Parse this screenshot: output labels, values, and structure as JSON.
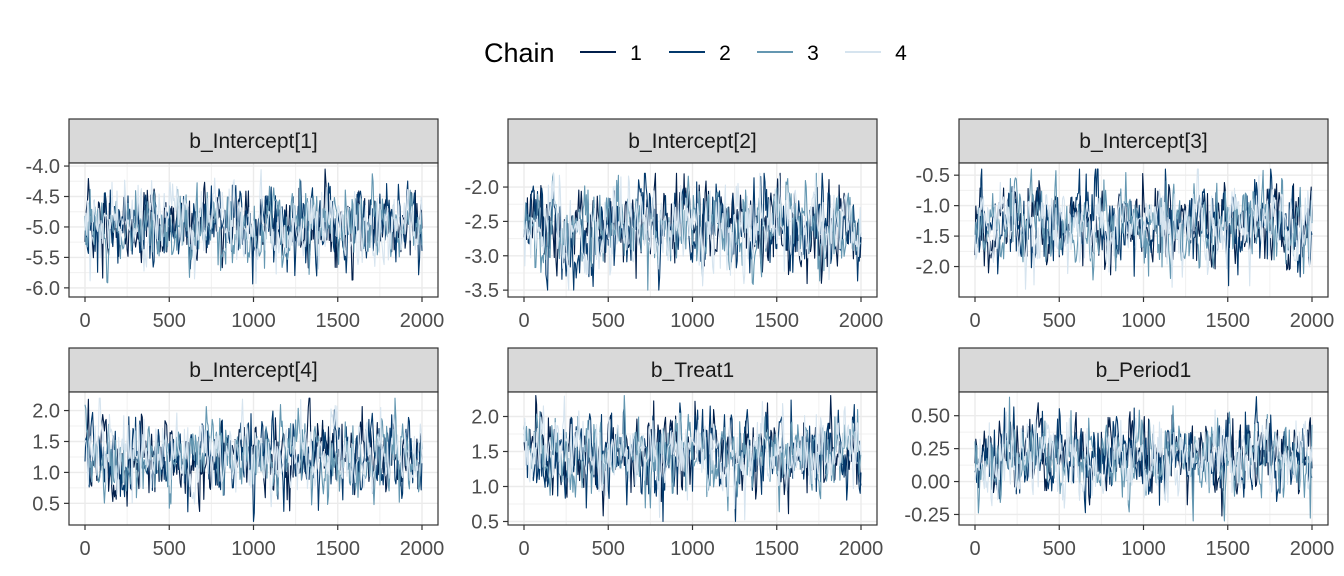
{
  "legend": {
    "title": "Chain",
    "entries": [
      {
        "label": "1",
        "color": "#011f4b"
      },
      {
        "label": "2",
        "color": "#03396c"
      },
      {
        "label": "3",
        "color": "#6497b1"
      },
      {
        "label": "4",
        "color": "#d6e4ef"
      }
    ]
  },
  "chart_data": [
    {
      "type": "line",
      "title": "b_Intercept[1]",
      "xlim": [
        0,
        2000
      ],
      "ylim": [
        -6.15,
        -3.95
      ],
      "xticks": [
        0,
        500,
        1000,
        1500,
        2000
      ],
      "yticks": [
        -6.0,
        -5.5,
        -5.0,
        -4.5,
        -4.0
      ],
      "ytick_labels": [
        "-6.0",
        "-5.5",
        "-5.0",
        "-4.5",
        "-4.0"
      ],
      "series_summary": {
        "center": -5.0,
        "spread": 0.32,
        "min": -6.0,
        "max": -4.05
      }
    },
    {
      "type": "line",
      "title": "b_Intercept[2]",
      "xlim": [
        0,
        2000
      ],
      "ylim": [
        -3.6,
        -1.65
      ],
      "xticks": [
        0,
        500,
        1000,
        1500,
        2000
      ],
      "yticks": [
        -3.5,
        -3.0,
        -2.5,
        -2.0
      ],
      "ytick_labels": [
        "-3.5",
        "-3.0",
        "-2.5",
        "-2.0"
      ],
      "series_summary": {
        "center": -2.6,
        "spread": 0.32,
        "min": -3.5,
        "max": -1.8
      }
    },
    {
      "type": "line",
      "title": "b_Intercept[3]",
      "xlim": [
        0,
        2000
      ],
      "ylim": [
        -2.5,
        -0.3
      ],
      "xticks": [
        0,
        500,
        1000,
        1500,
        2000
      ],
      "yticks": [
        -2.0,
        -1.5,
        -1.0,
        -0.5
      ],
      "ytick_labels": [
        "-2.0",
        "-1.5",
        "-1.0",
        "-0.5"
      ],
      "series_summary": {
        "center": -1.3,
        "spread": 0.33,
        "min": -2.4,
        "max": -0.4
      }
    },
    {
      "type": "line",
      "title": "b_Intercept[4]",
      "xlim": [
        0,
        2000
      ],
      "ylim": [
        0.15,
        2.3
      ],
      "xticks": [
        0,
        500,
        1000,
        1500,
        2000
      ],
      "yticks": [
        0.5,
        1.0,
        1.5,
        2.0
      ],
      "ytick_labels": [
        "0.5",
        "1.0",
        "1.5",
        "2.0"
      ],
      "series_summary": {
        "center": 1.25,
        "spread": 0.32,
        "min": 0.2,
        "max": 2.2
      }
    },
    {
      "type": "line",
      "title": "b_Treat1",
      "xlim": [
        0,
        2000
      ],
      "ylim": [
        0.45,
        2.35
      ],
      "xticks": [
        0,
        500,
        1000,
        1500,
        2000
      ],
      "yticks": [
        0.5,
        1.0,
        1.5,
        2.0
      ],
      "ytick_labels": [
        "0.5",
        "1.0",
        "1.5",
        "2.0"
      ],
      "series_summary": {
        "center": 1.45,
        "spread": 0.28,
        "min": 0.5,
        "max": 2.3
      }
    },
    {
      "type": "line",
      "title": "b_Period1",
      "xlim": [
        0,
        2000
      ],
      "ylim": [
        -0.33,
        0.68
      ],
      "xticks": [
        0,
        500,
        1000,
        1500,
        2000
      ],
      "yticks": [
        -0.25,
        0.0,
        0.25,
        0.5
      ],
      "ytick_labels": [
        "-0.25",
        "0.00",
        "0.25",
        "0.50"
      ],
      "series_summary": {
        "center": 0.18,
        "spread": 0.15,
        "min": -0.3,
        "max": 0.65
      }
    }
  ]
}
